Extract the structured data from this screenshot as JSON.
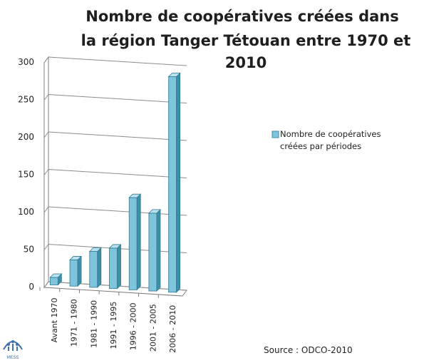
{
  "chart_data": {
    "type": "bar",
    "title_lines": [
      "Nombre de coopératives créées dans",
      "la région Tanger Tétouan entre 1970 et",
      "2010"
    ],
    "categories": [
      "Avant 1970",
      "1971 - 1980",
      "1981 - 1990",
      "1991 - 1995",
      "1996 - 2000",
      "2001 - 2005",
      "2006 - 2010"
    ],
    "series": [
      {
        "name_lines": [
          "Nombre de coopératives",
          "créées par périodes"
        ],
        "values": [
          10,
          35,
          48,
          54,
          123,
          104,
          288
        ],
        "color": "#7ec4dc"
      }
    ],
    "y_ticks": [
      "0",
      "50",
      "100",
      "150",
      "200",
      "250",
      "300"
    ],
    "ylim": [
      0,
      300
    ],
    "grid": true,
    "legend_position": "right"
  },
  "footer": {
    "source": "Source : ODCO-2010",
    "logo_text": "MESS"
  },
  "colors": {
    "bar_front": "#7ec4dc",
    "bar_side": "#3f8ea8",
    "bar_top": "#b9e1ee",
    "logo": "#3a6fb0"
  }
}
